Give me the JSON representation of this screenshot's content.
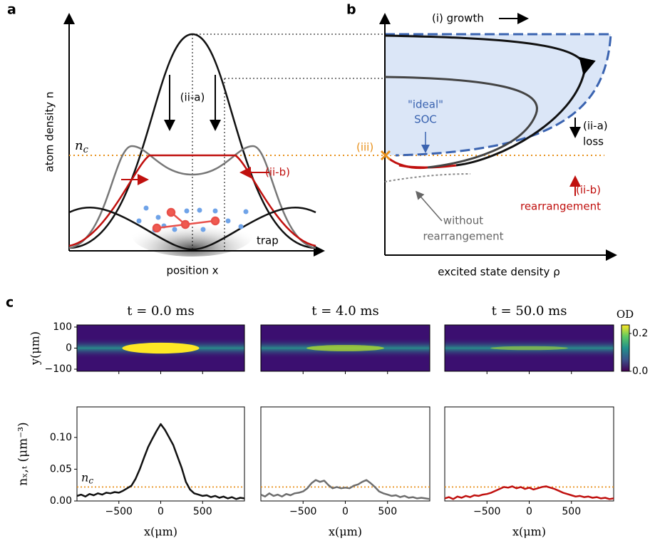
{
  "panel_a": {
    "label": "a",
    "ylabel": "atom density n",
    "xlabel": "position x",
    "nc": "n",
    "nc_sub": "c",
    "arrow_down": "(ii-a)",
    "arrow_in": "(ii-b)",
    "trap": "trap"
  },
  "panel_b": {
    "label": "b",
    "growth": "(i) growth",
    "ideal": "\"ideal\"",
    "soc": "SOC",
    "iii": "(iii)",
    "loss_tag": "(ii-a)",
    "loss": "loss",
    "rearr_tag": "(ii-b)",
    "rearr": "rearrangement",
    "without1": "without",
    "without2": "rearrangement",
    "xlabel": "excited state density ρ"
  },
  "panel_c_label": "c",
  "chart_data": [
    {
      "type": "line",
      "title": "t = 0.0 ms",
      "xlabel": "x(μm)",
      "ylabel": "nₓ,ₜ (μm⁻³)",
      "color": "#111111",
      "x": [
        -1000,
        -950,
        -900,
        -850,
        -800,
        -750,
        -700,
        -650,
        -600,
        -550,
        -500,
        -450,
        -400,
        -350,
        -300,
        -250,
        -200,
        -150,
        -100,
        -50,
        0,
        50,
        100,
        150,
        200,
        250,
        300,
        350,
        400,
        450,
        500,
        550,
        600,
        650,
        700,
        750,
        800,
        850,
        900,
        950,
        1000
      ],
      "values": [
        0.008,
        0.01,
        0.007,
        0.011,
        0.009,
        0.012,
        0.01,
        0.013,
        0.012,
        0.014,
        0.013,
        0.016,
        0.02,
        0.024,
        0.035,
        0.05,
        0.068,
        0.085,
        0.098,
        0.11,
        0.121,
        0.112,
        0.1,
        0.088,
        0.07,
        0.052,
        0.03,
        0.018,
        0.012,
        0.01,
        0.008,
        0.009,
        0.006,
        0.008,
        0.005,
        0.007,
        0.004,
        0.006,
        0.003,
        0.005,
        0.004
      ],
      "xlim": [
        -1000,
        1000
      ],
      "ylim": [
        0,
        0.148
      ],
      "xticks": [
        {
          "value": -500,
          "label": "−500"
        },
        0,
        500
      ],
      "yticks": [
        {
          "value": 0,
          "label": "0.00"
        },
        {
          "value": 0.05,
          "label": "0.05"
        },
        {
          "value": 0.1,
          "label": "0.10"
        }
      ],
      "hline": 0.022,
      "hline_label": "n",
      "hline_label_sub": "c",
      "image": {
        "ylabel": "y(μm)",
        "ylim": [
          -110,
          110
        ],
        "yticks": [
          100,
          0,
          {
            "value": -100,
            "label": "−100"
          }
        ]
      }
    },
    {
      "type": "line",
      "title": "t = 4.0 ms",
      "xlabel": "x(μm)",
      "color": "#6e6e6e",
      "x": [
        -1000,
        -950,
        -900,
        -850,
        -800,
        -750,
        -700,
        -650,
        -600,
        -550,
        -500,
        -450,
        -400,
        -350,
        -300,
        -250,
        -200,
        -150,
        -100,
        -50,
        0,
        50,
        100,
        150,
        200,
        250,
        300,
        350,
        400,
        450,
        500,
        550,
        600,
        650,
        700,
        750,
        800,
        850,
        900,
        950,
        1000
      ],
      "values": [
        0.01,
        0.007,
        0.012,
        0.008,
        0.01,
        0.007,
        0.011,
        0.009,
        0.012,
        0.013,
        0.015,
        0.02,
        0.028,
        0.033,
        0.03,
        0.032,
        0.025,
        0.02,
        0.022,
        0.02,
        0.021,
        0.02,
        0.024,
        0.026,
        0.03,
        0.033,
        0.028,
        0.022,
        0.015,
        0.012,
        0.01,
        0.008,
        0.009,
        0.006,
        0.008,
        0.005,
        0.006,
        0.004,
        0.005,
        0.004,
        0.003
      ],
      "xlim": [
        -1000,
        1000
      ],
      "ylim": [
        0,
        0.148
      ],
      "xticks": [
        {
          "value": -500,
          "label": "−500"
        },
        0,
        500
      ],
      "hline": 0.022
    },
    {
      "type": "line",
      "title": "t = 50.0 ms",
      "xlabel": "x(μm)",
      "color": "#c0100e",
      "x": [
        -1000,
        -950,
        -900,
        -850,
        -800,
        -750,
        -700,
        -650,
        -600,
        -550,
        -500,
        -450,
        -400,
        -350,
        -300,
        -250,
        -200,
        -150,
        -100,
        -50,
        0,
        50,
        100,
        150,
        200,
        250,
        300,
        350,
        400,
        450,
        500,
        550,
        600,
        650,
        700,
        750,
        800,
        850,
        900,
        950,
        1000
      ],
      "values": [
        0.004,
        0.006,
        0.003,
        0.007,
        0.005,
        0.008,
        0.006,
        0.009,
        0.008,
        0.01,
        0.011,
        0.013,
        0.016,
        0.019,
        0.022,
        0.021,
        0.023,
        0.02,
        0.022,
        0.019,
        0.021,
        0.018,
        0.02,
        0.022,
        0.023,
        0.021,
        0.019,
        0.016,
        0.013,
        0.011,
        0.009,
        0.007,
        0.008,
        0.006,
        0.007,
        0.005,
        0.006,
        0.004,
        0.005,
        0.003,
        0.004
      ],
      "xlim": [
        -1000,
        1000
      ],
      "ylim": [
        0,
        0.148
      ],
      "xticks": [
        {
          "value": -500,
          "label": "−500"
        },
        0,
        500
      ],
      "hline": 0.022,
      "colorbar": {
        "label": "OD",
        "lim": [
          0,
          0.245
        ],
        "ticks": [
          {
            "value": 0,
            "label": "0.0"
          },
          {
            "value": 0.2,
            "label": "0.2"
          }
        ]
      }
    }
  ]
}
